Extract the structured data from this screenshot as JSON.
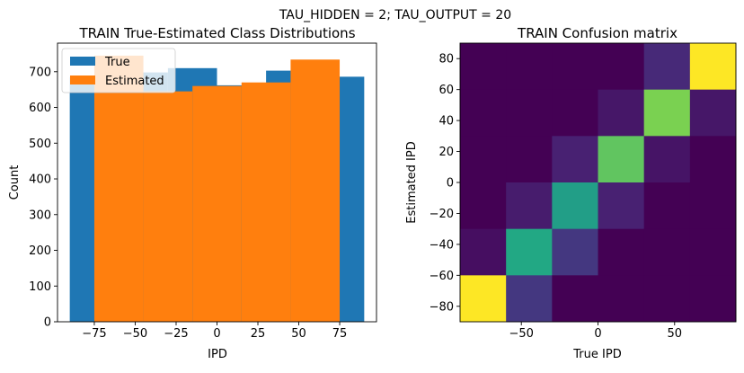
{
  "suptitle": "TAU_HIDDEN = 2; TAU_OUTPUT = 20",
  "chart_data": [
    {
      "type": "bar",
      "title": "TRAIN True-Estimated Class Distributions",
      "xlabel": "IPD",
      "ylabel": "Count",
      "xlim": [
        -97.5,
        97.5
      ],
      "ylim": [
        0,
        780
      ],
      "xticks": [
        -75,
        -50,
        -25,
        0,
        25,
        50,
        75
      ],
      "xtick_labels": [
        "−75",
        "−50",
        "−25",
        "0",
        "25",
        "50",
        "75"
      ],
      "yticks": [
        0,
        100,
        200,
        300,
        400,
        500,
        600,
        700
      ],
      "yticks_labels": [
        "0",
        "100",
        "200",
        "300",
        "400",
        "500",
        "600",
        "700"
      ],
      "legend_position": "upper left",
      "series": [
        {
          "name": "True",
          "color": "#1f77b4",
          "bins": [
            {
              "x0": -90,
              "x1": -60,
              "value": 685
            },
            {
              "x0": -60,
              "x1": -30,
              "value": 698
            },
            {
              "x0": -30,
              "x1": 0,
              "value": 710
            },
            {
              "x0": 0,
              "x1": 30,
              "value": 662
            },
            {
              "x0": 30,
              "x1": 60,
              "value": 703
            },
            {
              "x0": 60,
              "x1": 90,
              "value": 686
            }
          ]
        },
        {
          "name": "Estimated",
          "color": "#ff7f0e",
          "bins": [
            {
              "x0": -75,
              "x1": -45,
              "value": 745
            },
            {
              "x0": -45,
              "x1": -15,
              "value": 645
            },
            {
              "x0": -15,
              "x1": 15,
              "value": 660
            },
            {
              "x0": 15,
              "x1": 45,
              "value": 670
            },
            {
              "x0": 45,
              "x1": 75,
              "value": 734
            }
          ]
        }
      ]
    },
    {
      "type": "heatmap",
      "title": "TRAIN Confusion matrix",
      "xlabel": "True IPD",
      "ylabel": "Estimated IPD",
      "xlim": [
        -90,
        90
      ],
      "ylim": [
        -90,
        90
      ],
      "xticks": [
        -50,
        0,
        50
      ],
      "xtick_labels": [
        "−50",
        "0",
        "50"
      ],
      "yticks": [
        -80,
        -60,
        -40,
        -20,
        0,
        20,
        40,
        60,
        80
      ],
      "ytick_labels": [
        "−80",
        "−60",
        "−40",
        "−20",
        "0",
        "20",
        "40",
        "60",
        "80"
      ],
      "x_edges": [
        -90,
        -60,
        -30,
        0,
        30,
        60,
        90
      ],
      "y_edges": [
        -90,
        -60,
        -30,
        0,
        30,
        60,
        90
      ],
      "colormap": "viridis",
      "values_top_to_bottom": [
        [
          0,
          0,
          0,
          0,
          0.15,
          1.0
        ],
        [
          0,
          0,
          0,
          0.08,
          0.82,
          0.08
        ],
        [
          0,
          0,
          0.12,
          0.8,
          0.07,
          0
        ],
        [
          0,
          0.1,
          0.7,
          0.12,
          0,
          0
        ],
        [
          0.05,
          0.75,
          0.2,
          0,
          0,
          0
        ],
        [
          1.0,
          0.2,
          0,
          0,
          0,
          0
        ]
      ]
    }
  ]
}
